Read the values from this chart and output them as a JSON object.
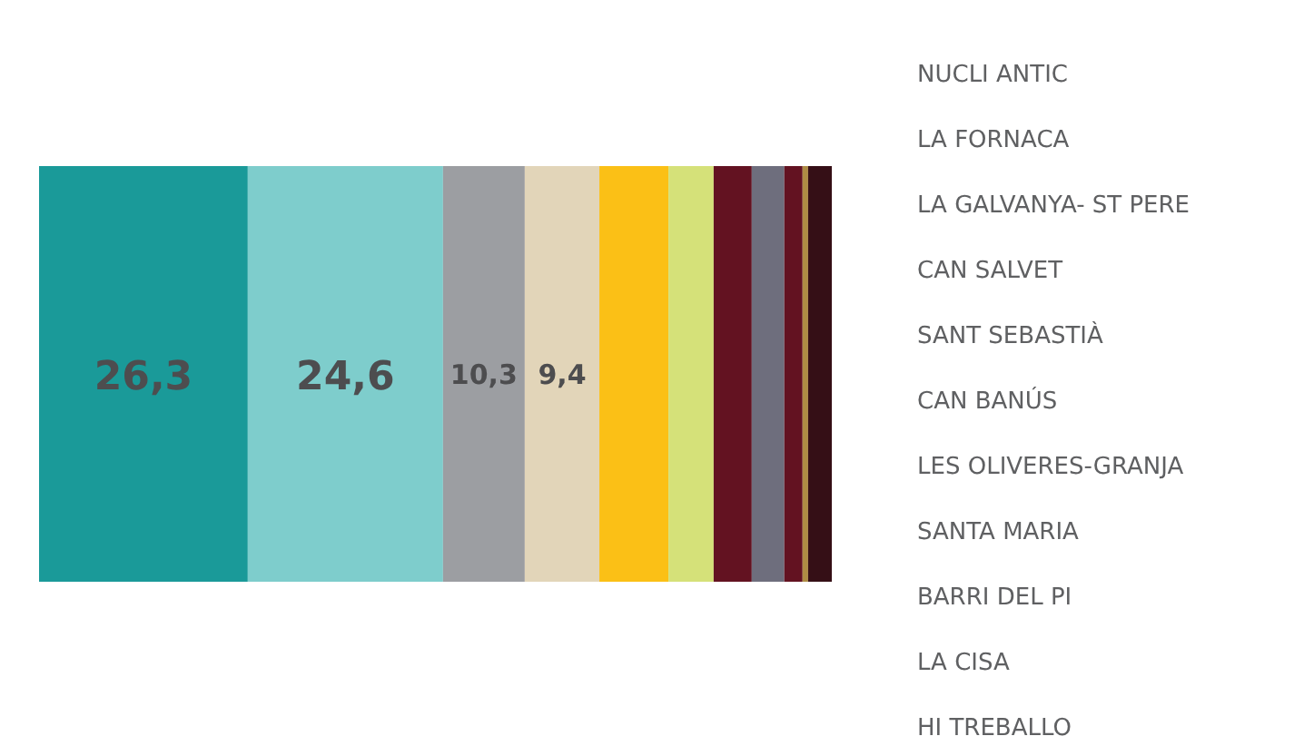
{
  "chart_data": {
    "type": "bar",
    "orientation": "horizontal",
    "stacked": true,
    "categories": [
      null
    ],
    "xlim": [
      0,
      100
    ],
    "tick_labels": false,
    "grid": false,
    "legend": "right",
    "series": [
      {
        "name": "NUCLI ANTIC",
        "color": "#1a9a99",
        "values": [
          26.3
        ],
        "value_labels": [
          "26,3"
        ]
      },
      {
        "name": "LA FORNACA",
        "color": "#7ecdcc",
        "values": [
          24.6
        ],
        "value_labels": [
          "24,6"
        ]
      },
      {
        "name": "LA GALVANYA- ST PERE",
        "color": "#9c9ea2",
        "values": [
          10.3
        ],
        "value_labels": [
          "10,3"
        ]
      },
      {
        "name": "CAN SALVET",
        "color": "#e2d5b9",
        "values": [
          9.4
        ],
        "value_labels": [
          "9,4"
        ]
      },
      {
        "name": "SANT SEBASTIÀ",
        "color": "#fbc016",
        "values": [
          8.7
        ]
      },
      {
        "name": "CAN BANÚS",
        "color": "#d5e179",
        "values": [
          5.7
        ]
      },
      {
        "name": "LES OLIVERES-GRANJA",
        "color": "#631221",
        "values": [
          4.8
        ]
      },
      {
        "name": "SANTA MARIA",
        "color": "#6e6e7d",
        "values": [
          4.1
        ]
      },
      {
        "name": "BARRI DEL PI",
        "color": "#631221",
        "values": [
          2.3
        ]
      },
      {
        "name": "LA CISA",
        "color": "#ae8c44",
        "values": [
          0.7
        ]
      },
      {
        "name": "HI TREBALLO",
        "color": "#350f16",
        "values": [
          3.1
        ]
      }
    ]
  }
}
